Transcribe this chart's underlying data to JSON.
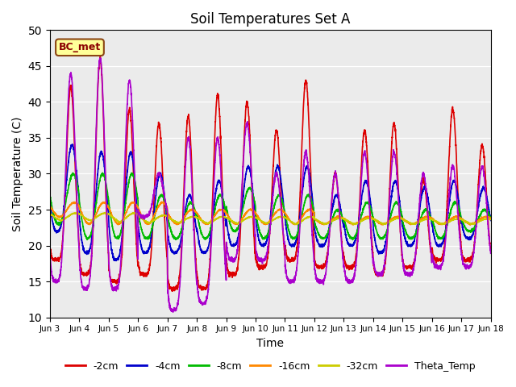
{
  "title": "Soil Temperatures Set A",
  "xlabel": "Time",
  "ylabel": "Soil Temperature (C)",
  "ylim": [
    10,
    50
  ],
  "yticks": [
    10,
    15,
    20,
    25,
    30,
    35,
    40,
    45,
    50
  ],
  "background_color": "#ebebeb",
  "annotation_text": "BC_met",
  "series": {
    "-2cm": {
      "color": "#dd0000",
      "lw": 1.2
    },
    "-4cm": {
      "color": "#0000cc",
      "lw": 1.2
    },
    "-8cm": {
      "color": "#00bb00",
      "lw": 1.2
    },
    "-16cm": {
      "color": "#ff8800",
      "lw": 1.2
    },
    "-32cm": {
      "color": "#cccc00",
      "lw": 1.2
    },
    "Theta_Temp": {
      "color": "#aa00cc",
      "lw": 1.2
    }
  },
  "x_tick_labels": [
    "Jun 3",
    "Jun 4",
    "Jun 5",
    "Jun 6",
    "Jun 7",
    "Jun 8",
    "Jun 9",
    "Jun 10",
    "Jun 11",
    "Jun 12",
    "Jun 13",
    "Jun 14",
    "Jun 15",
    "Jun 16",
    "Jun 17",
    "Jun 18"
  ],
  "x_tick_positions": [
    0,
    24,
    48,
    72,
    96,
    120,
    144,
    168,
    192,
    216,
    240,
    264,
    288,
    312,
    336,
    360
  ]
}
